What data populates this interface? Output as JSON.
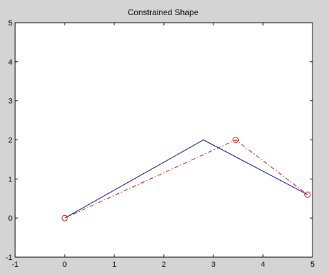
{
  "chart_data": {
    "type": "line",
    "title": "Constrained Shape",
    "xlabel": "",
    "ylabel": "",
    "xlim": [
      -1,
      5
    ],
    "ylim": [
      -1,
      5
    ],
    "xticks": [
      -1,
      0,
      1,
      2,
      3,
      4,
      5
    ],
    "yticks": [
      -1,
      0,
      1,
      2,
      3,
      4,
      5
    ],
    "grid": false,
    "legend": "none",
    "series": [
      {
        "style": "solid",
        "color": "#000080",
        "marker": "none",
        "points": [
          [
            0,
            0
          ],
          [
            2.8,
            2.0
          ],
          [
            4.9,
            0.6
          ]
        ]
      },
      {
        "style": "dash-dot",
        "color": "#cc0000",
        "marker": "circle",
        "points": [
          [
            0,
            0
          ],
          [
            3.45,
            2.0
          ],
          [
            4.9,
            0.6
          ]
        ]
      }
    ]
  }
}
